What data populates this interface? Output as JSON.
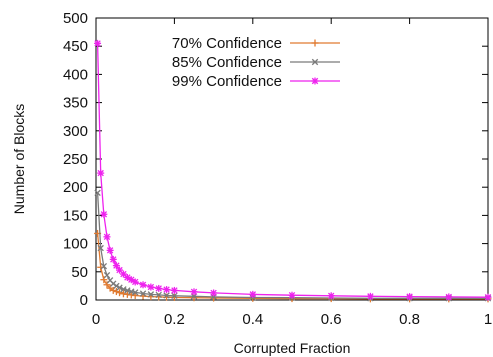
{
  "chart_data": {
    "type": "line",
    "title": "",
    "xlabel": "Corrupted Fraction",
    "ylabel": "Number of Blocks",
    "xlim": [
      0,
      1
    ],
    "ylim": [
      0,
      500
    ],
    "x_ticks": [
      "0",
      "0.2",
      "0.4",
      "0.6",
      "0.8",
      "1"
    ],
    "y_ticks": [
      "0",
      "50",
      "100",
      "150",
      "200",
      "250",
      "300",
      "350",
      "400",
      "450",
      "500"
    ],
    "grid": false,
    "legend_position": "top-right",
    "series": [
      {
        "name": "70% Confidence",
        "color": "#e07a30",
        "marker": "plus",
        "x": [
          0.004,
          0.012,
          0.02,
          0.028,
          0.036,
          0.044,
          0.052,
          0.06,
          0.07,
          0.08,
          0.09,
          0.1,
          0.12,
          0.14,
          0.16,
          0.18,
          0.2,
          0.25,
          0.3,
          0.4,
          0.5,
          0.6,
          0.7,
          0.8,
          0.9,
          1.0
        ],
        "y": [
          118,
          58,
          36,
          27,
          21,
          17,
          15,
          13,
          11,
          10,
          9,
          8,
          7,
          6,
          5.5,
          5,
          4.5,
          4,
          3.5,
          3,
          2.5,
          2.5,
          2,
          2,
          2,
          2
        ]
      },
      {
        "name": "85% Confidence",
        "color": "#7a7a7a",
        "marker": "x",
        "x": [
          0.004,
          0.012,
          0.02,
          0.028,
          0.036,
          0.044,
          0.052,
          0.06,
          0.07,
          0.08,
          0.09,
          0.1,
          0.12,
          0.14,
          0.16,
          0.18,
          0.2,
          0.25,
          0.3,
          0.4,
          0.5,
          0.6,
          0.7,
          0.8,
          0.9,
          1.0
        ],
        "y": [
          190,
          92,
          60,
          44,
          35,
          29,
          25,
          22,
          19,
          17,
          15,
          13.5,
          11.5,
          10,
          9,
          8,
          7.5,
          6.5,
          5.5,
          4.5,
          4,
          3.5,
          3,
          3,
          3,
          3
        ]
      },
      {
        "name": "99% Confidence",
        "color": "#ee22ee",
        "marker": "star",
        "x": [
          0.004,
          0.012,
          0.02,
          0.028,
          0.036,
          0.044,
          0.052,
          0.06,
          0.07,
          0.08,
          0.09,
          0.1,
          0.12,
          0.14,
          0.16,
          0.18,
          0.2,
          0.25,
          0.3,
          0.4,
          0.5,
          0.6,
          0.7,
          0.8,
          0.9,
          1.0
        ],
        "y": [
          455,
          225,
          152,
          112,
          88,
          72,
          61,
          53,
          46,
          40,
          36,
          32,
          27,
          23,
          20.5,
          18.5,
          17,
          14.5,
          12.5,
          10,
          8.5,
          7.5,
          6.5,
          6,
          5.5,
          5
        ]
      }
    ]
  }
}
